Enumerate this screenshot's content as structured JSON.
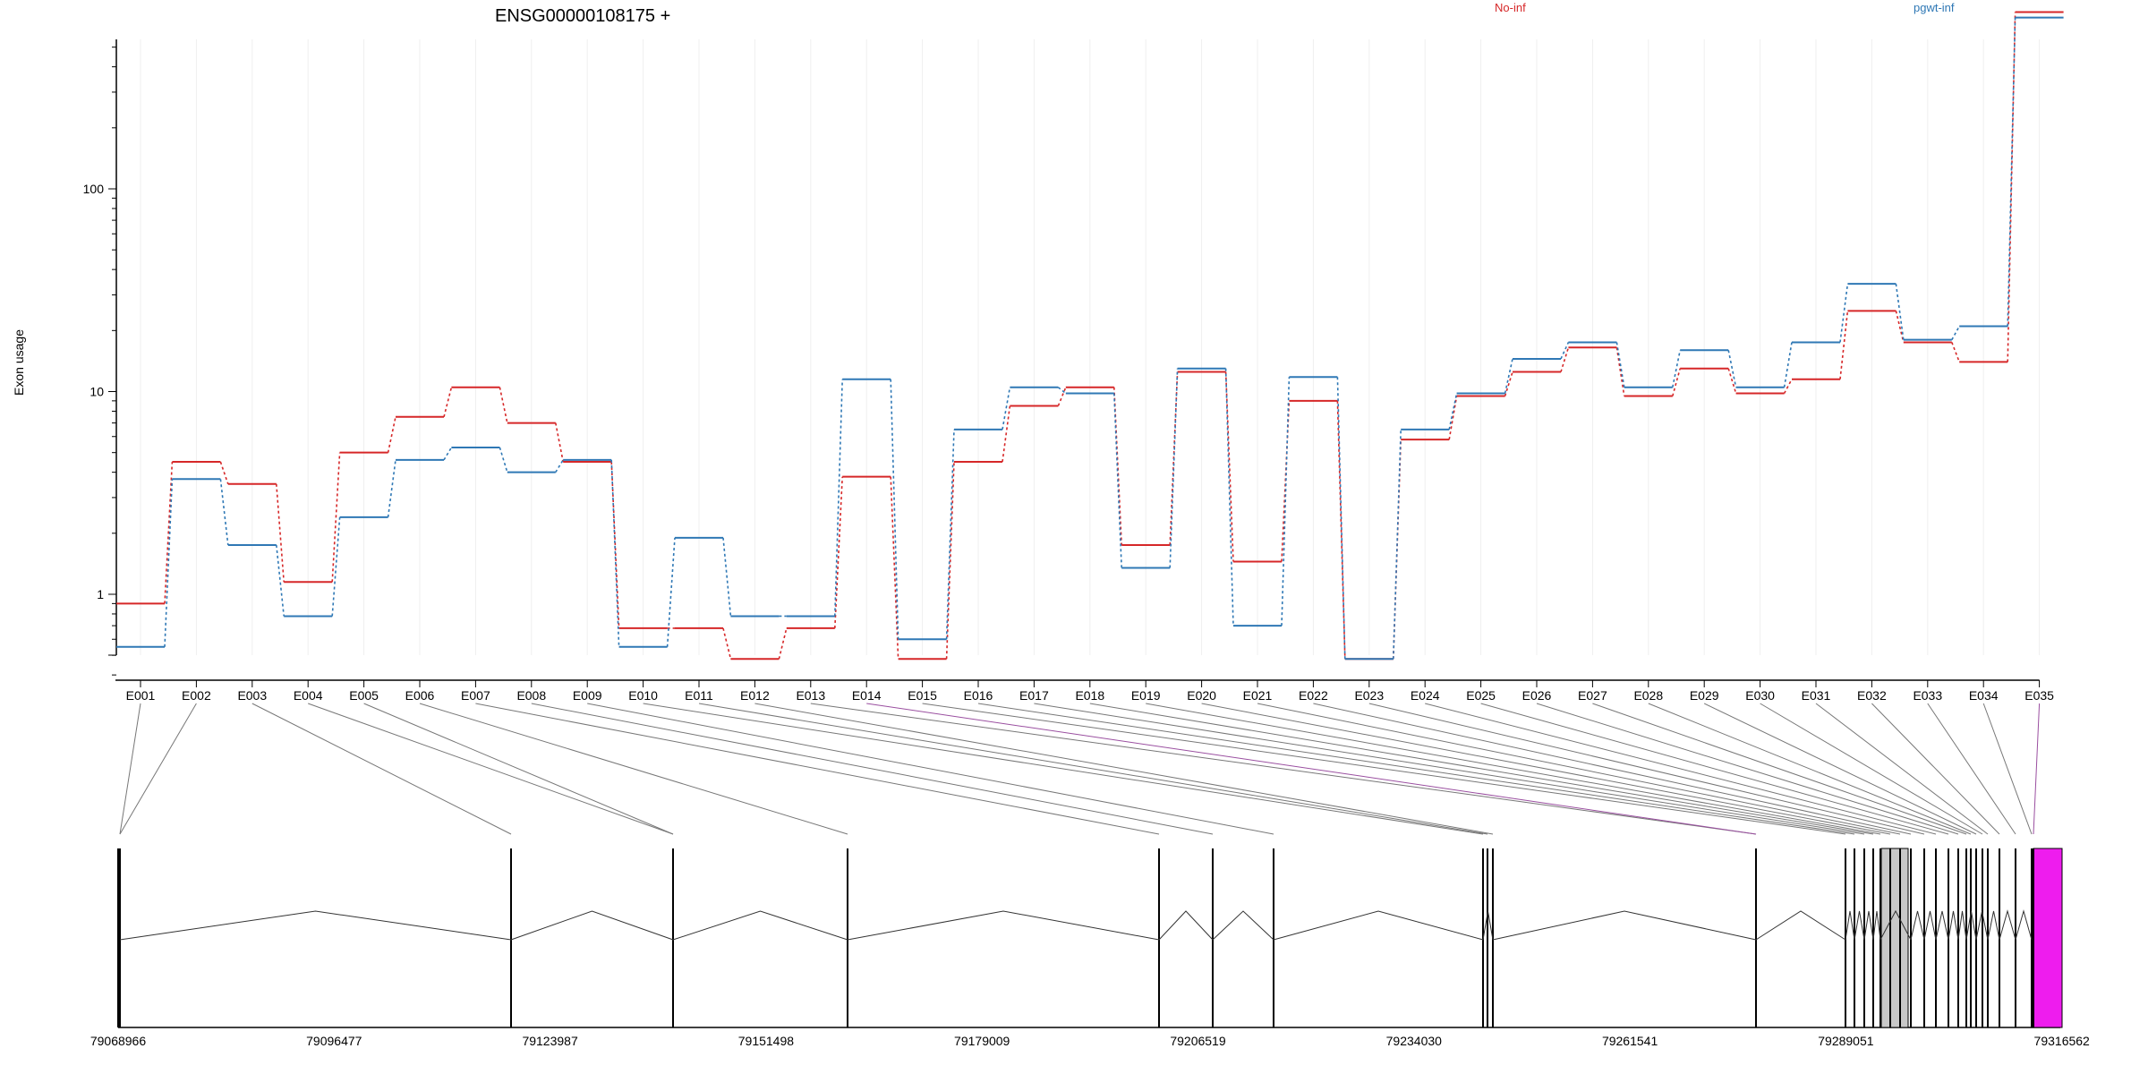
{
  "chart_data": {
    "type": "line",
    "title": "ENSG00000108175 +",
    "ylabel": "Exon usage",
    "yscale": "log",
    "ylim": [
      0.4,
      1000
    ],
    "grid": "vertical",
    "legend_placement": "top",
    "yticks": [
      {
        "value": 1,
        "label": "1"
      },
      {
        "value": 10,
        "label": "10"
      },
      {
        "value": 100,
        "label": "100"
      }
    ],
    "categories": [
      "E001",
      "E002",
      "E003",
      "E004",
      "E005",
      "E006",
      "E007",
      "E008",
      "E009",
      "E010",
      "E011",
      "E012",
      "E013",
      "E014",
      "E015",
      "E016",
      "E017",
      "E018",
      "E019",
      "E020",
      "E021",
      "E022",
      "E023",
      "E024",
      "E025",
      "E026",
      "E027",
      "E028",
      "E029",
      "E030",
      "E031",
      "E032",
      "E033",
      "E034",
      "E035"
    ],
    "series": [
      {
        "name": "No-inf",
        "color": "#d62728",
        "values": [
          0.9,
          4.5,
          3.5,
          1.15,
          5.0,
          7.5,
          10.5,
          7.0,
          4.5,
          0.68,
          0.68,
          0.48,
          0.68,
          3.8,
          0.48,
          4.5,
          8.5,
          10.5,
          1.75,
          12.5,
          1.45,
          9.0,
          0.48,
          5.8,
          9.5,
          12.5,
          16.5,
          9.5,
          13.0,
          9.8,
          11.5,
          25.0,
          17.5,
          14.0,
          745.0
        ]
      },
      {
        "name": "pgwt-inf",
        "color": "#2f78b5",
        "values": [
          0.55,
          3.7,
          1.75,
          0.78,
          2.4,
          4.6,
          5.3,
          4.0,
          4.6,
          0.55,
          1.9,
          0.78,
          0.78,
          11.5,
          0.6,
          6.5,
          10.5,
          9.8,
          1.35,
          13.0,
          0.7,
          11.8,
          0.48,
          6.5,
          9.8,
          14.5,
          17.5,
          10.5,
          16.0,
          10.5,
          17.5,
          34.0,
          18.0,
          21.0,
          700.0
        ]
      }
    ],
    "gene_model": {
      "axis_labels": [
        "79068966",
        "79096477",
        "79123987",
        "79151498",
        "79179009",
        "79206519",
        "79234030",
        "79261541",
        "79289051",
        "79316562"
      ],
      "highlight_exon": "E035",
      "highlight_color": "#ee1cee",
      "shaded_color": "#c8c8c8"
    }
  }
}
